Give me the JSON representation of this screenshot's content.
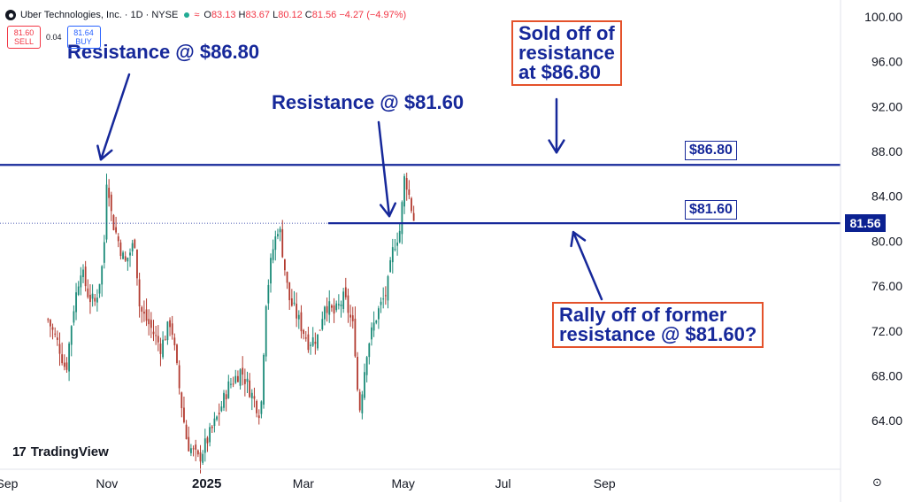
{
  "header": {
    "symbol_title": "Uber Technologies, Inc. · 1D · NYSE",
    "ohlc": [
      {
        "key": "O",
        "value": "83.13"
      },
      {
        "key": "H",
        "value": "83.67"
      },
      {
        "key": "L",
        "value": "80.12"
      },
      {
        "key": "C",
        "value": "81.56"
      },
      {
        "key": "",
        "value": "−4.27 (−4.97%)"
      }
    ]
  },
  "quote": {
    "sell_price": "81.60",
    "sell_label": "SELL",
    "spread": "0.04",
    "buy_price": "81.64",
    "buy_label": "BUY"
  },
  "branding": {
    "name": "TradingView"
  },
  "last_price": "81.56",
  "annotations": {
    "resistance_left": "Resistance @ $86.80",
    "resistance_mid": "Resistance @ $81.60",
    "sold_off": [
      "Sold off of",
      "resistance",
      "at $86.80"
    ],
    "rally": [
      "Rally off of former",
      "resistance @ $81.60?"
    ]
  },
  "level_tags": {
    "upper": "$86.80",
    "lower": "$81.60"
  },
  "colors": {
    "up_candle": "#1b8a78",
    "down_candle": "#b23a2f",
    "annotation_blue": "#16289a",
    "box_border": "#e4522b",
    "last_price_bg": "#0b2191"
  },
  "chart_data": {
    "type": "candlestick",
    "y_axis": {
      "ticks": [
        "100.00",
        "96.00",
        "92.00",
        "88.00",
        "84.00",
        "80.00",
        "76.00",
        "72.00",
        "68.00",
        "64.00"
      ],
      "ylim": [
        60.3,
        101.5
      ]
    },
    "x_axis": {
      "ticks": [
        "Sep",
        "Nov",
        "2025",
        "Mar",
        "May",
        "Jul",
        "Sep"
      ]
    },
    "horizontal_levels": [
      {
        "price": 86.8,
        "label": "$86.80"
      },
      {
        "price": 81.6,
        "label": "$81.60"
      }
    ],
    "close_series": [
      {
        "date": "2024-09-26",
        "close": 73.0
      },
      {
        "date": "2024-10-03",
        "close": 70.5
      },
      {
        "date": "2024-10-07",
        "close": 68.4
      },
      {
        "date": "2024-10-11",
        "close": 73.5
      },
      {
        "date": "2024-10-16",
        "close": 77.6
      },
      {
        "date": "2024-10-21",
        "close": 75.0
      },
      {
        "date": "2024-10-25",
        "close": 74.5
      },
      {
        "date": "2024-10-30",
        "close": 78.5
      },
      {
        "date": "2024-11-01",
        "close": 86.3
      },
      {
        "date": "2024-11-04",
        "close": 82.0
      },
      {
        "date": "2024-11-08",
        "close": 80.0
      },
      {
        "date": "2024-11-12",
        "close": 78.0
      },
      {
        "date": "2024-11-18",
        "close": 80.0
      },
      {
        "date": "2024-11-21",
        "close": 74.0
      },
      {
        "date": "2024-11-27",
        "close": 72.5
      },
      {
        "date": "2024-12-04",
        "close": 70.5
      },
      {
        "date": "2024-12-10",
        "close": 73.0
      },
      {
        "date": "2024-12-16",
        "close": 66.0
      },
      {
        "date": "2024-12-20",
        "close": 62.0
      },
      {
        "date": "2024-12-27",
        "close": 60.5
      },
      {
        "date": "2025-01-02",
        "close": 62.5
      },
      {
        "date": "2025-01-08",
        "close": 64.5
      },
      {
        "date": "2025-01-14",
        "close": 67.0
      },
      {
        "date": "2025-01-22",
        "close": 68.5
      },
      {
        "date": "2025-01-28",
        "close": 66.5
      },
      {
        "date": "2025-02-03",
        "close": 64.5
      },
      {
        "date": "2025-02-06",
        "close": 74.5
      },
      {
        "date": "2025-02-10",
        "close": 79.0
      },
      {
        "date": "2025-02-14",
        "close": 81.6
      },
      {
        "date": "2025-02-20",
        "close": 75.0
      },
      {
        "date": "2025-02-26",
        "close": 73.0
      },
      {
        "date": "2025-03-04",
        "close": 71.0
      },
      {
        "date": "2025-03-10",
        "close": 71.5
      },
      {
        "date": "2025-03-14",
        "close": 74.5
      },
      {
        "date": "2025-03-20",
        "close": 73.5
      },
      {
        "date": "2025-03-26",
        "close": 75.0
      },
      {
        "date": "2025-04-01",
        "close": 72.0
      },
      {
        "date": "2025-04-04",
        "close": 64.5
      },
      {
        "date": "2025-04-09",
        "close": 70.5
      },
      {
        "date": "2025-04-15",
        "close": 73.5
      },
      {
        "date": "2025-04-21",
        "close": 75.5
      },
      {
        "date": "2025-04-25",
        "close": 79.5
      },
      {
        "date": "2025-04-29",
        "close": 81.0
      },
      {
        "date": "2025-05-02",
        "close": 86.0
      },
      {
        "date": "2025-05-06",
        "close": 83.0
      },
      {
        "date": "2025-05-08",
        "close": 81.56
      }
    ]
  }
}
